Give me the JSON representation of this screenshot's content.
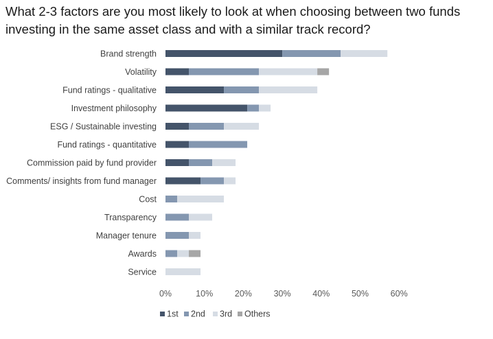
{
  "title_lines": [
    "What 2-3 factors are you most likely to look at when choosing between two funds",
    "investing in the same asset class and with a similar track record?"
  ],
  "colors": {
    "first": "#44546a",
    "second": "#8497b0",
    "third": "#d6dce4",
    "others": "#a6a6a6"
  },
  "chart_data": {
    "type": "bar",
    "orientation": "horizontal",
    "stacked": true,
    "title": "What 2-3 factors are you most likely to look at when choosing between two funds investing in the same asset class and with a similar track record?",
    "xlim": [
      0,
      60
    ],
    "x_ticks": [
      "0%",
      "10%",
      "20%",
      "30%",
      "40%",
      "50%",
      "60%"
    ],
    "grid": false,
    "legend_position": "bottom",
    "categories": [
      "Brand strength",
      "Volatility",
      "Fund ratings - qualitative",
      "Investment philosophy",
      "ESG / Sustainable investing",
      "Fund ratings - quantitative",
      "Commission paid by fund provider",
      "Comments/ insights from fund manager",
      "Cost",
      "Transparency",
      "Manager tenure",
      "Awards",
      "Service"
    ],
    "series": [
      {
        "name": "1st",
        "values": [
          30,
          6,
          15,
          21,
          6,
          6,
          6,
          9,
          0,
          0,
          0,
          0,
          0
        ]
      },
      {
        "name": "2nd",
        "values": [
          15,
          18,
          9,
          3,
          9,
          15,
          6,
          6,
          3,
          6,
          6,
          3,
          0
        ]
      },
      {
        "name": "3rd",
        "values": [
          12,
          15,
          15,
          3,
          9,
          0,
          6,
          3,
          12,
          6,
          3,
          3,
          9
        ]
      },
      {
        "name": "Others",
        "values": [
          0,
          3,
          0,
          0,
          0,
          0,
          0,
          0,
          0,
          0,
          0,
          3,
          0
        ]
      }
    ]
  }
}
